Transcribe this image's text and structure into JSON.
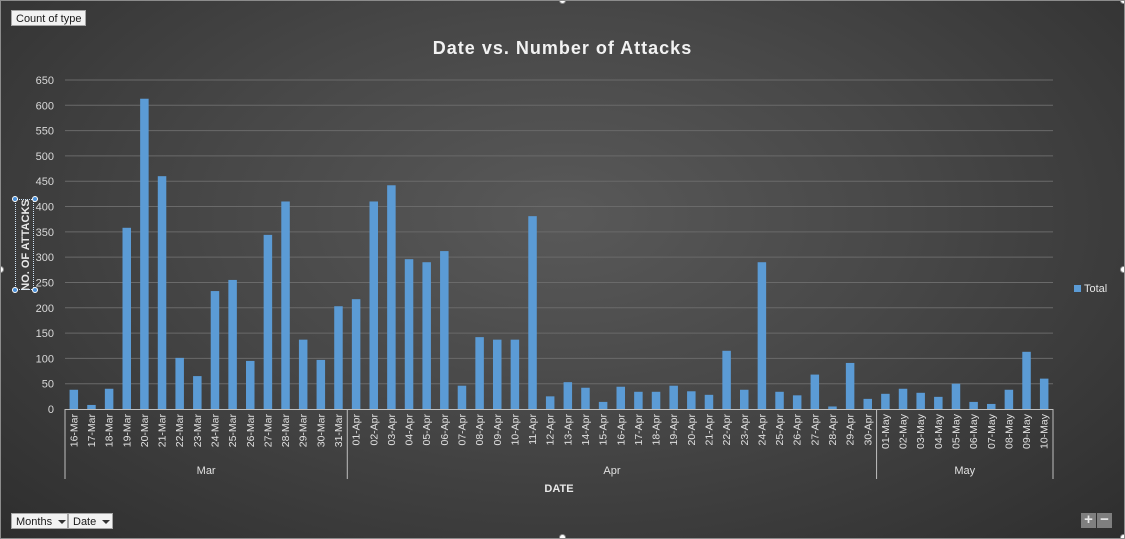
{
  "filter_buttons": {
    "value_field": "Count of type",
    "axis_fields": [
      "Months",
      "Date"
    ]
  },
  "legend": {
    "label": "Total",
    "color": "#5b9bd5"
  },
  "zoom": {
    "expand": "+",
    "collapse": "−"
  },
  "chart_data": {
    "type": "bar",
    "title": "Date vs. Number of Attacks",
    "xlabel": "DATE",
    "ylabel": "NO. OF ATTACKS",
    "ylim": [
      0,
      650
    ],
    "yticks": [
      0,
      50,
      100,
      150,
      200,
      250,
      300,
      350,
      400,
      450,
      500,
      550,
      600,
      650
    ],
    "grid": true,
    "legend_position": "right",
    "bar_color": "#5b9bd5",
    "categories": [
      "16-Mar",
      "17-Mar",
      "18-Mar",
      "19-Mar",
      "20-Mar",
      "21-Mar",
      "22-Mar",
      "23-Mar",
      "24-Mar",
      "25-Mar",
      "26-Mar",
      "27-Mar",
      "28-Mar",
      "29-Mar",
      "30-Mar",
      "31-Mar",
      "01-Apr",
      "02-Apr",
      "03-Apr",
      "04-Apr",
      "05-Apr",
      "06-Apr",
      "07-Apr",
      "08-Apr",
      "09-Apr",
      "10-Apr",
      "11-Apr",
      "12-Apr",
      "13-Apr",
      "14-Apr",
      "15-Apr",
      "16-Apr",
      "17-Apr",
      "18-Apr",
      "19-Apr",
      "20-Apr",
      "21-Apr",
      "22-Apr",
      "23-Apr",
      "24-Apr",
      "25-Apr",
      "26-Apr",
      "27-Apr",
      "28-Apr",
      "29-Apr",
      "30-Apr",
      "01-May",
      "02-May",
      "03-May",
      "04-May",
      "05-May",
      "06-May",
      "07-May",
      "08-May",
      "09-May",
      "10-May"
    ],
    "groups": [
      {
        "label": "Mar",
        "count": 16
      },
      {
        "label": "Apr",
        "count": 30
      },
      {
        "label": "May",
        "count": 10
      }
    ],
    "series": [
      {
        "name": "Total",
        "values": [
          38,
          8,
          40,
          358,
          613,
          460,
          101,
          65,
          233,
          255,
          95,
          344,
          410,
          137,
          97,
          203,
          217,
          410,
          442,
          296,
          290,
          312,
          46,
          142,
          137,
          137,
          381,
          25,
          53,
          42,
          14,
          44,
          34,
          34,
          46,
          35,
          28,
          115,
          38,
          290,
          34,
          27,
          68,
          5,
          91,
          20,
          30,
          40,
          32,
          24,
          50,
          14,
          10,
          38,
          113,
          60
        ]
      }
    ]
  }
}
